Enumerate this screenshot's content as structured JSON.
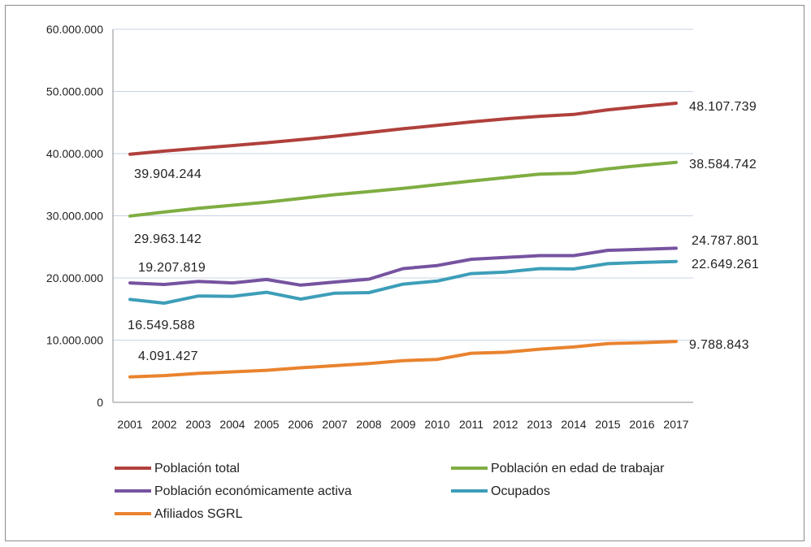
{
  "chart_data": {
    "type": "line",
    "title": "",
    "xlabel": "",
    "ylabel": "",
    "categories": [
      "2001",
      "2002",
      "2003",
      "2004",
      "2005",
      "2006",
      "2007",
      "2008",
      "2009",
      "2010",
      "2011",
      "2012",
      "2013",
      "2014",
      "2015",
      "2016",
      "2017"
    ],
    "ylim": [
      0,
      60000000
    ],
    "yticks": [
      "0",
      "10.000.000",
      "20.000.000",
      "30.000.000",
      "40.000.000",
      "50.000.000",
      "60.000.000"
    ],
    "grid": true,
    "legend_position": "bottom",
    "series": [
      {
        "name": "Población total",
        "color": "#b0403c",
        "values": [
          39904244,
          40400000,
          40850000,
          41300000,
          41750000,
          42250000,
          42800000,
          43400000,
          44000000,
          44550000,
          45100000,
          45600000,
          46000000,
          46300000,
          47050000,
          47600000,
          48107739
        ],
        "labels": [
          {
            "index": 0,
            "text": "39.904.244"
          },
          {
            "index": 16,
            "text": "48.107.739"
          }
        ]
      },
      {
        "name": "Población en edad de trabajar",
        "color": "#7fad42",
        "values": [
          29963142,
          30600000,
          31200000,
          31700000,
          32200000,
          32800000,
          33400000,
          33900000,
          34400000,
          35000000,
          35600000,
          36150000,
          36700000,
          36850000,
          37550000,
          38100000,
          38584742
        ],
        "labels": [
          {
            "index": 0,
            "text": "29.963.142"
          },
          {
            "index": 16,
            "text": "38.584.742"
          }
        ]
      },
      {
        "name": "Población económicamente activa",
        "color": "#7653a0",
        "values": [
          19207819,
          18950000,
          19450000,
          19200000,
          19750000,
          18850000,
          19350000,
          19800000,
          21500000,
          22000000,
          23000000,
          23300000,
          23600000,
          23600000,
          24450000,
          24600000,
          24787801
        ],
        "labels": [
          {
            "index": 1,
            "text": "19.207.819"
          },
          {
            "index": 16,
            "text": "24.787.801"
          }
        ]
      },
      {
        "name": "Ocupados",
        "color": "#3d9eb9",
        "values": [
          16549588,
          15950000,
          17100000,
          17050000,
          17700000,
          16600000,
          17550000,
          17650000,
          19000000,
          19500000,
          20700000,
          20950000,
          21500000,
          21450000,
          22300000,
          22500000,
          22649261
        ],
        "labels": [
          {
            "index": 0,
            "text": "16.549.588"
          },
          {
            "index": 16,
            "text": "22.649.261"
          }
        ]
      },
      {
        "name": "Afiliados SGRL",
        "color": "#e9832e",
        "values": [
          4091427,
          4300000,
          4650000,
          4900000,
          5150000,
          5550000,
          5900000,
          6250000,
          6700000,
          6900000,
          7900000,
          8050000,
          8550000,
          8900000,
          9450000,
          9600000,
          9788843
        ],
        "labels": [
          {
            "index": 0,
            "text": "4.091.427"
          },
          {
            "index": 16,
            "text": "9.788.843"
          }
        ]
      }
    ]
  }
}
